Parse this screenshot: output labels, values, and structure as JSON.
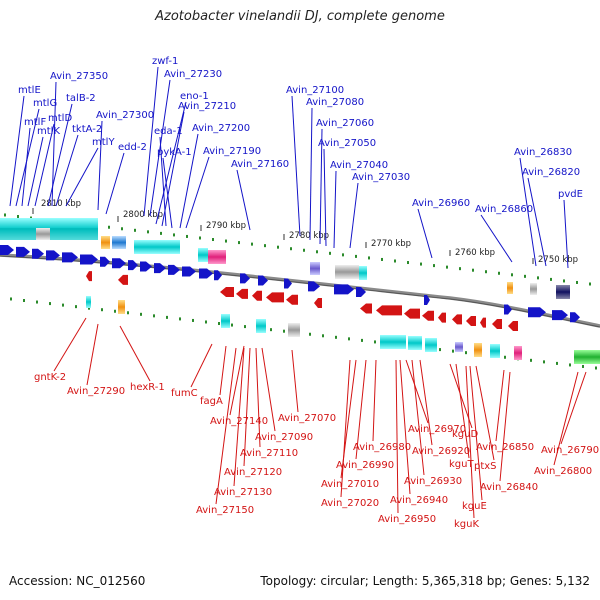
{
  "title": "Azotobacter vinelandii DJ, complete genome",
  "footer": {
    "accession": "Accession: NC_012560",
    "summary": "Topology: circular; Length: 5,365,318 bp; Genes: 5,132"
  },
  "colors": {
    "forward_gene": "#1414c8",
    "reverse_gene": "#d31414",
    "backbone": "#7a7a7a",
    "rna_marker": "#2a8a2a"
  },
  "scale_ticks": [
    "2810 kbp",
    "2800 kbp",
    "2790 kbp",
    "2780 kbp",
    "2770 kbp",
    "2760 kbp",
    "2750 kbp"
  ],
  "forward_labels": [
    "mtlE",
    "mtlG",
    "mtlF",
    "mtlK",
    "mtlD",
    "talB-2",
    "tktA-2",
    "mtlY",
    "Avin_27350",
    "Avin_27300",
    "edd-2",
    "zwf-1",
    "Avin_27230",
    "eno-1",
    "Avin_27210",
    "eda-1",
    "pykA-1",
    "Avin_27200",
    "Avin_27190",
    "Avin_27160",
    "Avin_27100",
    "Avin_27080",
    "Avin_27060",
    "Avin_27050",
    "Avin_27040",
    "Avin_27030",
    "Avin_26960",
    "Avin_26860",
    "Avin_26830",
    "Avin_26820",
    "pvdE"
  ],
  "reverse_labels": [
    "gntK-2",
    "Avin_27290",
    "hexR-1",
    "fumC",
    "fagA",
    "Avin_27140",
    "Avin_27090",
    "Avin_27070",
    "Avin_27110",
    "Avin_27120",
    "Avin_27130",
    "Avin_27150",
    "Avin_26970",
    "Avin_26980",
    "Avin_26990",
    "Avin_27010",
    "Avin_27020",
    "kguD",
    "Avin_26920",
    "Avin_26930",
    "Avin_26940",
    "Avin_26950",
    "kguT",
    "ptxS",
    "kguE",
    "kguK",
    "Avin_26850",
    "Avin_26840",
    "Avin_26790",
    "Avin_26800"
  ]
}
